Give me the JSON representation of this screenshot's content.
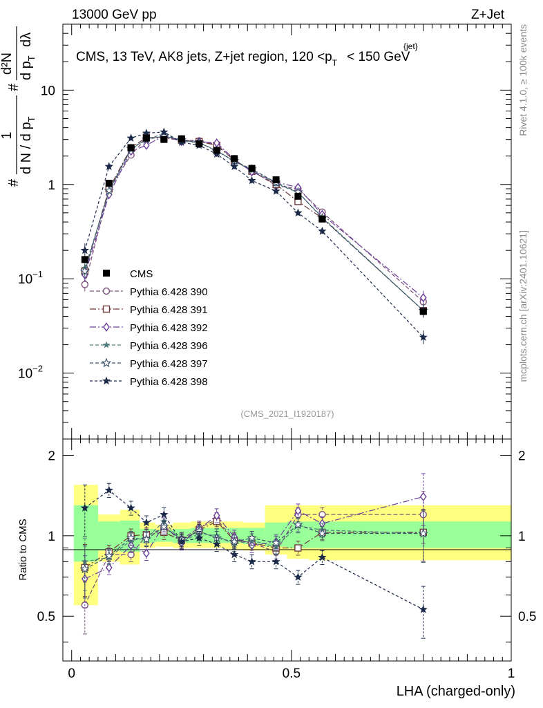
{
  "header": {
    "left": "13000 GeV pp",
    "right": "Z+Jet"
  },
  "side_labels": {
    "rivet": "Rivet 4.1.0, ≥ 100k events",
    "mcplots": "mcplots.cern.ch [arXiv:2401.10621]"
  },
  "analysis_tag": "(CMS_2021_I1920187)",
  "colors": {
    "data": "#000000",
    "band_outer": "#ffff80",
    "band_inner": "#99ff99",
    "p390": "#7a4f7a",
    "p391": "#6b3a3a",
    "p392": "#6a3d9a",
    "p396": "#4f7a7a",
    "p397": "#3a4f6b",
    "p398": "#1c2a4a"
  },
  "chart_data": [
    {
      "type": "line",
      "title": "CMS, 13 TeV, AK8 jets, Z+jet region, 120 <p_T^{jet}< 150 GeV",
      "title_main": "CMS, 13 TeV, AK8 jets, Z+jet region, 120 <p",
      "title_sub": "T",
      "title_sup": "{jet}",
      "title_end": "< 150 GeV",
      "ylabel_parts": {
        "hash": "#",
        "one": "1",
        "dN": "d N / d p",
        "dN_sub": "T",
        "hash2": "#",
        "d2N": "d²N",
        "dpt": "d p",
        "dpt_sub": "T",
        "dlambda": "dλ"
      },
      "xlabel": "LHA (charged-only)",
      "yscale": "log",
      "xlim": [
        -0.02,
        1.0
      ],
      "ylim": [
        0.002,
        50
      ],
      "yticks": [
        {
          "value": 10,
          "label": "10"
        },
        {
          "value": 1,
          "label": "1"
        },
        {
          "value": 0.1,
          "label": "10",
          "exp": "−1"
        },
        {
          "value": 0.01,
          "label": "10",
          "exp": "−2"
        }
      ],
      "x": [
        0.03,
        0.085,
        0.135,
        0.17,
        0.21,
        0.25,
        0.29,
        0.33,
        0.37,
        0.41,
        0.465,
        0.515,
        0.57,
        0.8
      ],
      "series": [
        {
          "name": "CMS",
          "key": "data",
          "marker": "filled-square",
          "values": [
            0.16,
            1.03,
            2.45,
            3.1,
            3.0,
            3.05,
            2.7,
            2.3,
            1.88,
            1.48,
            1.12,
            0.75,
            0.43,
            0.045
          ]
        },
        {
          "name": "Pythia 6.428 390",
          "key": "p390",
          "marker": "open-circle",
          "dash": "6,3",
          "values": [
            0.087,
            0.88,
            2.05,
            3.1,
            3.2,
            2.95,
            2.9,
            2.65,
            1.82,
            1.4,
            0.97,
            0.9,
            0.51,
            0.057
          ]
        },
        {
          "name": "Pythia 6.428 391",
          "key": "p391",
          "marker": "open-square",
          "dash": "9,3,2,3",
          "values": [
            0.12,
            0.9,
            2.45,
            3.15,
            3.1,
            2.95,
            2.85,
            2.6,
            1.8,
            1.38,
            1.0,
            0.66,
            0.44,
            0.046
          ]
        },
        {
          "name": "Pythia 6.428 392",
          "key": "p392",
          "marker": "open-diamond",
          "dash": "9,3,2,3",
          "values": [
            0.11,
            0.78,
            2.25,
            2.6,
            3.3,
            2.85,
            2.85,
            2.75,
            1.85,
            1.36,
            1.06,
            0.93,
            0.48,
            0.063
          ]
        },
        {
          "name": "Pythia 6.428 396",
          "key": "p396",
          "marker": "filled-star",
          "dash": "5,3",
          "values": [
            0.13,
            0.85,
            2.35,
            3.05,
            3.4,
            2.9,
            2.75,
            2.3,
            1.75,
            1.42,
            1.02,
            0.82,
            0.45,
            0.046
          ]
        },
        {
          "name": "Pythia 6.428 397",
          "key": "p397",
          "marker": "open-star",
          "dash": "5,3",
          "values": [
            0.12,
            0.86,
            2.4,
            3.0,
            3.25,
            2.95,
            2.8,
            2.25,
            1.78,
            1.45,
            1.05,
            0.83,
            0.44,
            0.046
          ]
        },
        {
          "name": "Pythia 6.428 398",
          "key": "p398",
          "marker": "filled-triangle-down",
          "dash": "4,3",
          "values": [
            0.2,
            1.55,
            3.1,
            3.5,
            3.6,
            2.8,
            2.6,
            2.1,
            1.55,
            1.1,
            0.85,
            0.5,
            0.32,
            0.024
          ]
        }
      ]
    },
    {
      "type": "line",
      "ylabel": "Ratio to CMS",
      "xlim": [
        -0.02,
        1.0
      ],
      "ylim": [
        0.34,
        2.3
      ],
      "yticks": [
        {
          "value": 0.5,
          "label": "0.5"
        },
        {
          "value": 1,
          "label": "1"
        },
        {
          "value": 2,
          "label": "2"
        }
      ],
      "xticks": [
        {
          "value": 0,
          "label": "0"
        },
        {
          "value": 0.5,
          "label": "0.5"
        },
        {
          "value": 1,
          "label": "1"
        }
      ],
      "bands": [
        {
          "lo": 0.005,
          "hi": 0.06,
          "outer": [
            0.55,
            1.55
          ],
          "inner": [
            0.8,
            1.3
          ]
        },
        {
          "lo": 0.06,
          "hi": 0.11,
          "outer": [
            0.8,
            1.2
          ],
          "inner": [
            0.88,
            1.13
          ]
        },
        {
          "lo": 0.11,
          "hi": 0.155,
          "outer": [
            0.78,
            1.25
          ],
          "inner": [
            0.87,
            1.14
          ]
        },
        {
          "lo": 0.155,
          "hi": 0.19,
          "outer": [
            0.9,
            1.12
          ],
          "inner": [
            0.94,
            1.06
          ]
        },
        {
          "lo": 0.19,
          "hi": 0.23,
          "outer": [
            0.91,
            1.1
          ],
          "inner": [
            0.95,
            1.05
          ]
        },
        {
          "lo": 0.23,
          "hi": 0.27,
          "outer": [
            0.9,
            1.12
          ],
          "inner": [
            0.94,
            1.06
          ]
        },
        {
          "lo": 0.27,
          "hi": 0.31,
          "outer": [
            0.9,
            1.13
          ],
          "inner": [
            0.94,
            1.07
          ]
        },
        {
          "lo": 0.31,
          "hi": 0.35,
          "outer": [
            0.9,
            1.13
          ],
          "inner": [
            0.94,
            1.07
          ]
        },
        {
          "lo": 0.35,
          "hi": 0.39,
          "outer": [
            0.89,
            1.13
          ],
          "inner": [
            0.94,
            1.07
          ]
        },
        {
          "lo": 0.39,
          "hi": 0.44,
          "outer": [
            0.88,
            1.12
          ],
          "inner": [
            0.93,
            1.07
          ]
        },
        {
          "lo": 0.44,
          "hi": 0.49,
          "outer": [
            0.85,
            1.3
          ],
          "inner": [
            0.91,
            1.12
          ]
        },
        {
          "lo": 0.49,
          "hi": 0.54,
          "outer": [
            0.82,
            1.3
          ],
          "inner": [
            0.9,
            1.13
          ]
        },
        {
          "lo": 0.54,
          "hi": 0.6,
          "outer": [
            0.81,
            1.3
          ],
          "inner": [
            0.9,
            1.13
          ]
        },
        {
          "lo": 0.6,
          "hi": 1.0,
          "outer": [
            0.81,
            1.3
          ],
          "inner": [
            0.9,
            1.13
          ]
        }
      ],
      "series": [
        {
          "name": "Pythia 6.428 390",
          "key": "p390",
          "marker": "open-circle",
          "dash": "6,3",
          "values": [
            0.55,
            0.85,
            0.85,
            1.0,
            1.07,
            0.97,
            1.07,
            1.15,
            0.97,
            0.94,
            0.87,
            1.2,
            1.2,
            1.2
          ]
        },
        {
          "name": "Pythia 6.428 391",
          "key": "p391",
          "marker": "open-square",
          "dash": "9,3,2,3",
          "values": [
            0.76,
            0.87,
            1.0,
            1.01,
            1.03,
            0.96,
            1.05,
            1.13,
            0.96,
            0.94,
            0.9,
            0.9,
            1.03,
            1.03
          ]
        },
        {
          "name": "Pythia 6.428 392",
          "key": "p392",
          "marker": "open-diamond",
          "dash": "9,3,2,3",
          "values": [
            0.69,
            0.76,
            0.92,
            0.86,
            1.1,
            0.94,
            1.06,
            1.19,
            0.99,
            0.92,
            0.95,
            1.24,
            1.11,
            1.4
          ]
        },
        {
          "name": "Pythia 6.428 396",
          "key": "p396",
          "marker": "filled-star",
          "dash": "5,3",
          "values": [
            0.8,
            0.83,
            0.96,
            0.98,
            1.13,
            0.95,
            1.02,
            1.0,
            0.93,
            0.96,
            0.91,
            1.09,
            1.05,
            1.02
          ]
        },
        {
          "name": "Pythia 6.428 397",
          "key": "p397",
          "marker": "open-star",
          "dash": "5,3",
          "values": [
            0.75,
            0.84,
            0.98,
            0.97,
            1.08,
            0.97,
            1.04,
            0.98,
            0.95,
            0.98,
            0.94,
            1.1,
            1.02,
            1.02
          ]
        },
        {
          "name": "Pythia 6.428 398",
          "key": "p398",
          "marker": "filled-triangle-down",
          "dash": "4,3",
          "values": [
            1.27,
            1.48,
            1.27,
            1.12,
            1.2,
            0.95,
            0.98,
            0.93,
            0.85,
            0.8,
            0.8,
            0.7,
            0.83,
            0.53
          ]
        }
      ]
    }
  ]
}
